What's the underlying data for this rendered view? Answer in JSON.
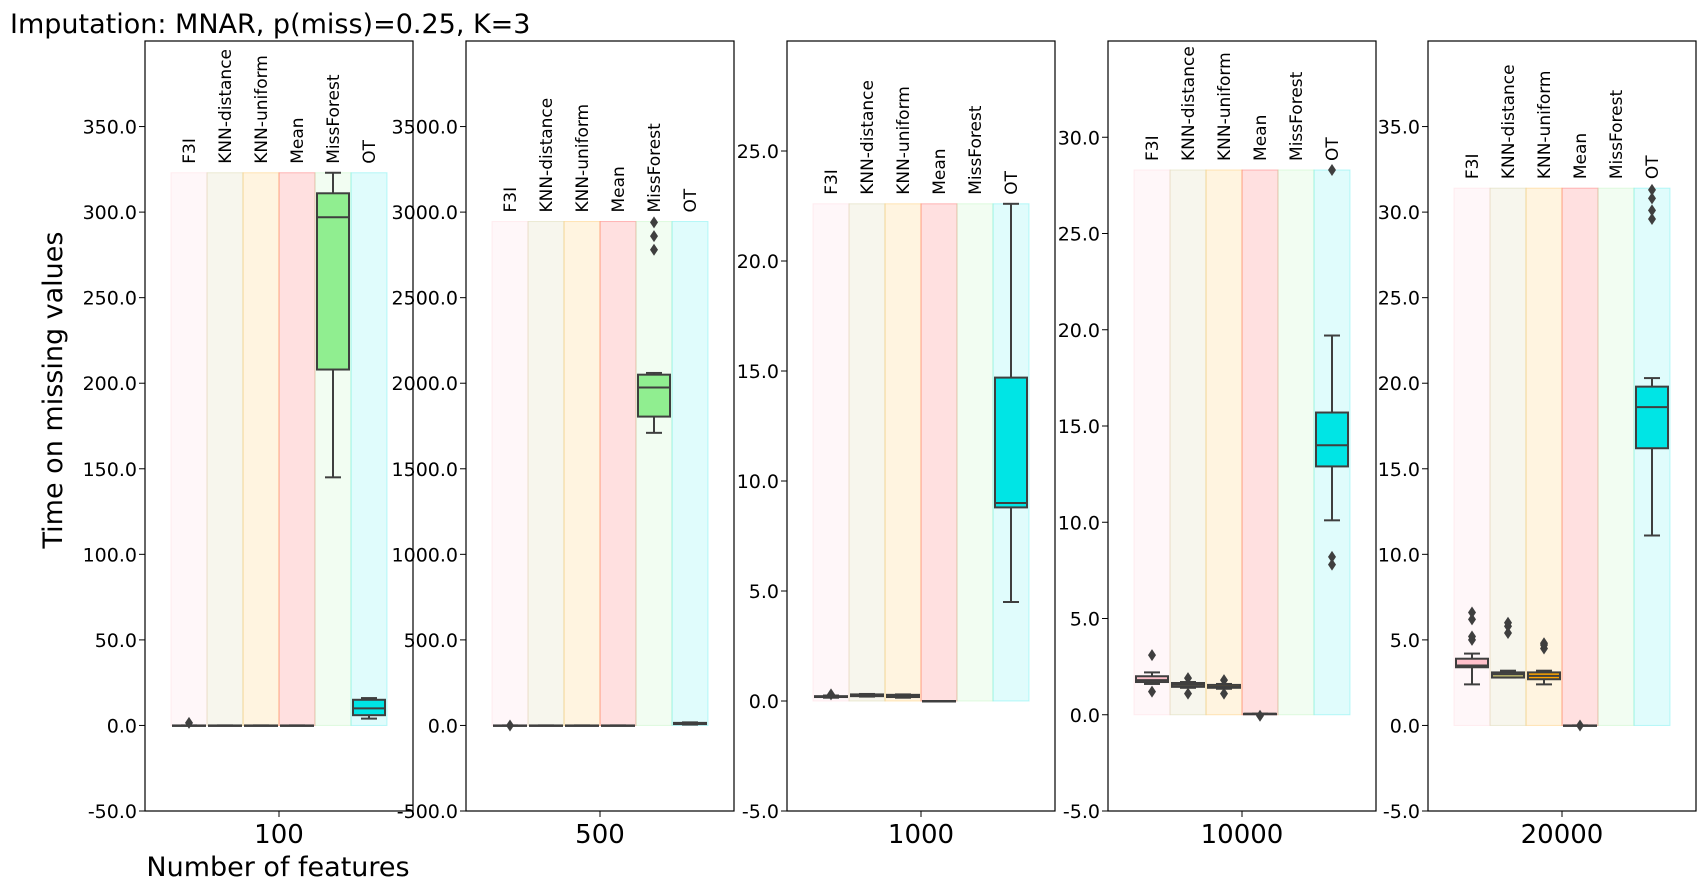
{
  "figure": {
    "title": "Imputation: MNAR, p(miss)=0.25, K=3",
    "ylabel": "Time on missing values",
    "xlabel": "Number of features"
  },
  "colors": {
    "F3I": "#ffc0cb",
    "KNN-distance": "#bdb76b",
    "KNN-uniform": "#ffa500",
    "Mean": "#ff0000",
    "MissForest": "#90ee90",
    "OT": "#00e5e5"
  },
  "chart_data": [
    {
      "type": "box",
      "category": "100",
      "methods": [
        "F3I",
        "KNN-distance",
        "KNN-uniform",
        "Mean",
        "MissForest",
        "OT"
      ],
      "ylim": [
        -50,
        400
      ],
      "yticks": [
        -50,
        0,
        50,
        100,
        150,
        200,
        250,
        300,
        350
      ],
      "band_top": 323,
      "boxes": [
        {
          "method": "F3I",
          "whislo": 0,
          "q1": 0,
          "med": 0,
          "q3": 0,
          "whishi": 0,
          "fliers": [
            1.5
          ]
        },
        {
          "method": "KNN-distance",
          "whislo": 0,
          "q1": 0,
          "med": 0,
          "q3": 0,
          "whishi": 0,
          "fliers": []
        },
        {
          "method": "KNN-uniform",
          "whislo": 0,
          "q1": 0,
          "med": 0,
          "q3": 0,
          "whishi": 0,
          "fliers": []
        },
        {
          "method": "Mean",
          "whislo": 0,
          "q1": 0,
          "med": 0,
          "q3": 0,
          "whishi": 0,
          "fliers": []
        },
        {
          "method": "MissForest",
          "whislo": 145,
          "q1": 208,
          "med": 297,
          "q3": 311,
          "whishi": 323,
          "fliers": []
        },
        {
          "method": "OT",
          "whislo": 4,
          "q1": 6,
          "med": 10,
          "q3": 15,
          "whishi": 16,
          "fliers": []
        }
      ]
    },
    {
      "type": "box",
      "category": "500",
      "methods": [
        "F3I",
        "KNN-distance",
        "KNN-uniform",
        "Mean",
        "MissForest",
        "OT"
      ],
      "ylim": [
        -500,
        4000
      ],
      "yticks": [
        -500,
        0,
        500,
        1000,
        1500,
        2000,
        2500,
        3000,
        3500
      ],
      "band_top": 2945,
      "boxes": [
        {
          "method": "F3I",
          "whislo": 0,
          "q1": 0,
          "med": 0,
          "q3": 0,
          "whishi": 0,
          "fliers": [
            0
          ]
        },
        {
          "method": "KNN-distance",
          "whislo": 0,
          "q1": 0,
          "med": 0,
          "q3": 0,
          "whishi": 0,
          "fliers": []
        },
        {
          "method": "KNN-uniform",
          "whislo": 0,
          "q1": 0,
          "med": 0,
          "q3": 0,
          "whishi": 0,
          "fliers": []
        },
        {
          "method": "Mean",
          "whislo": 0,
          "q1": 0,
          "med": 0,
          "q3": 0,
          "whishi": 0,
          "fliers": []
        },
        {
          "method": "MissForest",
          "whislo": 1710,
          "q1": 1805,
          "med": 1975,
          "q3": 2050,
          "whishi": 2060,
          "fliers": [
            2780,
            2860,
            2940
          ]
        },
        {
          "method": "OT",
          "whislo": 5,
          "q1": 8,
          "med": 10,
          "q3": 15,
          "whishi": 18,
          "fliers": []
        }
      ]
    },
    {
      "type": "box",
      "category": "1000",
      "methods": [
        "F3I",
        "KNN-distance",
        "KNN-uniform",
        "Mean",
        "MissForest",
        "OT"
      ],
      "ylim": [
        -5,
        30
      ],
      "yticks": [
        -5,
        0,
        5,
        10,
        15,
        20,
        25
      ],
      "band_top": 22.6,
      "boxes": [
        {
          "method": "F3I",
          "whislo": 0.15,
          "q1": 0.18,
          "med": 0.2,
          "q3": 0.22,
          "whishi": 0.25,
          "fliers": [
            0.3
          ]
        },
        {
          "method": "KNN-distance",
          "whislo": 0.2,
          "q1": 0.22,
          "med": 0.25,
          "q3": 0.3,
          "whishi": 0.32,
          "fliers": []
        },
        {
          "method": "KNN-uniform",
          "whislo": 0.15,
          "q1": 0.18,
          "med": 0.22,
          "q3": 0.28,
          "whishi": 0.3,
          "fliers": []
        },
        {
          "method": "Mean",
          "whislo": 0,
          "q1": 0,
          "med": 0,
          "q3": 0,
          "whishi": 0,
          "fliers": []
        },
        {
          "method": "MissForest",
          "whislo": null,
          "q1": null,
          "med": null,
          "q3": null,
          "whishi": null,
          "fliers": []
        },
        {
          "method": "OT",
          "whislo": 4.5,
          "q1": 8.8,
          "med": 9.0,
          "q3": 14.7,
          "whishi": 22.6,
          "fliers": []
        }
      ]
    },
    {
      "type": "box",
      "category": "10000",
      "methods": [
        "F3I",
        "KNN-distance",
        "KNN-uniform",
        "Mean",
        "MissForest",
        "OT"
      ],
      "ylim": [
        -5,
        35
      ],
      "yticks": [
        -5,
        0,
        5,
        10,
        15,
        20,
        25,
        30
      ],
      "band_top": 28.3,
      "boxes": [
        {
          "method": "F3I",
          "whislo": 1.6,
          "q1": 1.7,
          "med": 1.8,
          "q3": 2.0,
          "whishi": 2.2,
          "fliers": [
            1.2,
            3.1
          ]
        },
        {
          "method": "KNN-distance",
          "whislo": 1.4,
          "q1": 1.45,
          "med": 1.55,
          "q3": 1.65,
          "whishi": 1.7,
          "fliers": [
            1.1,
            1.9
          ]
        },
        {
          "method": "KNN-uniform",
          "whislo": 1.35,
          "q1": 1.4,
          "med": 1.45,
          "q3": 1.55,
          "whishi": 1.6,
          "fliers": [
            1.1,
            1.8
          ]
        },
        {
          "method": "Mean",
          "whislo": 0.05,
          "q1": 0.05,
          "med": 0.05,
          "q3": 0.05,
          "whishi": 0.05,
          "fliers": [
            -0.05
          ]
        },
        {
          "method": "MissForest",
          "whislo": null,
          "q1": null,
          "med": null,
          "q3": null,
          "whishi": null,
          "fliers": []
        },
        {
          "method": "OT",
          "whislo": 10.1,
          "q1": 12.9,
          "med": 14.0,
          "q3": 15.7,
          "whishi": 19.7,
          "fliers": [
            7.8,
            8.2,
            28.3
          ]
        }
      ]
    },
    {
      "type": "box",
      "category": "20000",
      "methods": [
        "F3I",
        "KNN-distance",
        "KNN-uniform",
        "Mean",
        "MissForest",
        "OT"
      ],
      "ylim": [
        -5,
        40
      ],
      "yticks": [
        -5,
        0,
        5,
        10,
        15,
        20,
        25,
        30,
        35
      ],
      "band_top": 31.4,
      "boxes": [
        {
          "method": "F3I",
          "whislo": 2.4,
          "q1": 3.4,
          "med": 3.5,
          "q3": 3.9,
          "whishi": 4.2,
          "fliers": [
            5.0,
            5.2,
            6.2,
            6.6
          ]
        },
        {
          "method": "KNN-distance",
          "whislo": 2.8,
          "q1": 2.8,
          "med": 3.0,
          "q3": 3.1,
          "whishi": 3.2,
          "fliers": [
            5.4,
            5.8,
            6.0
          ]
        },
        {
          "method": "KNN-uniform",
          "whislo": 2.4,
          "q1": 2.7,
          "med": 2.9,
          "q3": 3.1,
          "whishi": 3.2,
          "fliers": [
            4.5,
            4.7,
            4.8
          ]
        },
        {
          "method": "Mean",
          "whislo": 0,
          "q1": 0,
          "med": 0,
          "q3": 0,
          "whishi": 0,
          "fliers": [
            0
          ]
        },
        {
          "method": "MissForest",
          "whislo": null,
          "q1": null,
          "med": null,
          "q3": null,
          "whishi": null,
          "fliers": []
        },
        {
          "method": "OT",
          "whislo": 11.1,
          "q1": 16.2,
          "med": 18.6,
          "q3": 19.8,
          "whishi": 20.3,
          "fliers": [
            29.6,
            30.1,
            30.8,
            31.3
          ]
        }
      ]
    }
  ]
}
